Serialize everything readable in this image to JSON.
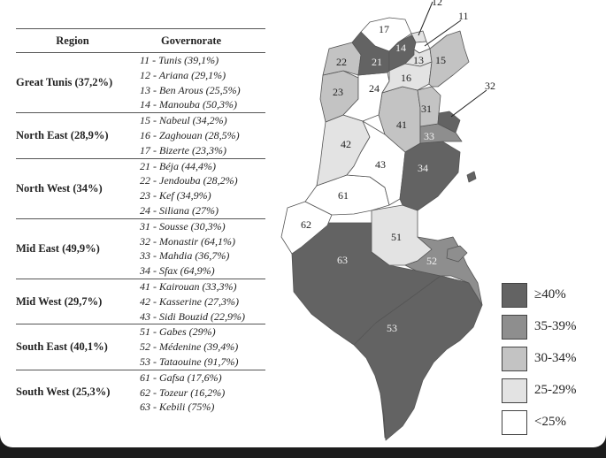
{
  "table": {
    "header_region": "Region",
    "header_governorate": "Governorate",
    "groups": [
      {
        "region": "Great Tunis (37,2%)",
        "govs": [
          "11 - Tunis (39,1%)",
          "12 - Ariana (29,1%)",
          "13 - Ben Arous (25,5%)",
          "14 - Manouba (50,3%)"
        ]
      },
      {
        "region": "North East (28,9%)",
        "govs": [
          "15 - Nabeul (34,2%)",
          "16 - Zaghouan (28,5%)",
          "17 - Bizerte (23,3%)"
        ]
      },
      {
        "region": "North West (34%)",
        "govs": [
          "21 - Béja (44,4%)",
          "22 - Jendouba (28,2%)",
          "23 - Kef (34,9%)",
          "24 - Siliana (27%)"
        ]
      },
      {
        "region": "Mid East (49,9%)",
        "govs": [
          "31 - Sousse (30,3%)",
          "32 - Monastir (64,1%)",
          "33 - Mahdia (36,7%)",
          "34 - Sfax (64,9%)"
        ]
      },
      {
        "region": "Mid West (29,7%)",
        "govs": [
          "41 - Kairouan (33,3%)",
          "42 - Kasserine (27,3%)",
          "43 - Sidi Bouzid (22,9%)"
        ]
      },
      {
        "region": "South East (40,1%)",
        "govs": [
          "51 - Gabes (29%)",
          "52 - Médenine (39,4%)",
          "53 - Tataouine (91,7%)"
        ]
      },
      {
        "region": "South West (25,3%)",
        "govs": [
          "61 - Gafsa (17,6%)",
          "62 - Tozeur (16,2%)",
          "63 - Kebili (75%)"
        ]
      }
    ]
  },
  "map_labels": {
    "g11": "11",
    "g12": "12",
    "g13": "13",
    "g14": "14",
    "g15": "15",
    "g16": "16",
    "g17": "17",
    "g21": "21",
    "g22": "22",
    "g23": "23",
    "g24": "24",
    "g31": "31",
    "g32": "32",
    "g33": "33",
    "g34": "34",
    "g41": "41",
    "g42": "42",
    "g43": "43",
    "g51": "51",
    "g52": "52",
    "g53": "53",
    "g61": "61",
    "g62": "62",
    "g63": "63"
  },
  "legend": [
    {
      "label": "≥40%",
      "color": "#636363"
    },
    {
      "label": "35-39%",
      "color": "#8e8e8e"
    },
    {
      "label": "30-34%",
      "color": "#c3c3c3"
    },
    {
      "label": "25-29%",
      "color": "#e3e3e3"
    },
    {
      "label": "<25%",
      "color": "#ffffff"
    }
  ]
}
